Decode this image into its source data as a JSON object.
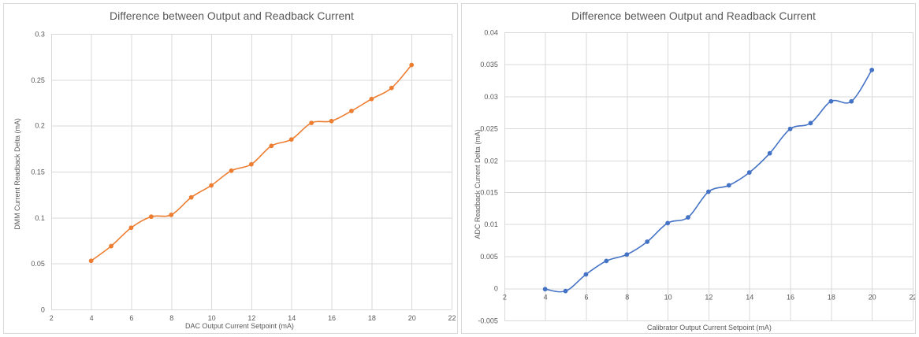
{
  "chart_data": [
    {
      "type": "line",
      "title": "Difference between Output and Readback Current",
      "xlabel": "DAC Output Current Setpoint (mA)",
      "ylabel": "DMM Current Readback Delta (mA)",
      "xlim": [
        2,
        22
      ],
      "ylim": [
        0,
        0.3
      ],
      "x_ticks": [
        "2",
        "4",
        "6",
        "8",
        "10",
        "12",
        "14",
        "16",
        "18",
        "20",
        "22"
      ],
      "y_ticks": [
        "0",
        "0.05",
        "0.1",
        "0.15",
        "0.2",
        "0.25",
        "0.3"
      ],
      "grid": true,
      "legend": "none",
      "smoothed": true,
      "color": "#ED7D31",
      "series": [
        {
          "x": [
            4,
            5,
            6,
            7,
            8,
            9,
            10,
            11,
            12,
            13,
            14,
            15,
            16,
            17,
            18,
            19,
            20
          ],
          "y": [
            0.053,
            0.069,
            0.089,
            0.101,
            0.103,
            0.122,
            0.135,
            0.151,
            0.158,
            0.178,
            0.185,
            0.203,
            0.205,
            0.216,
            0.229,
            0.241,
            0.266
          ]
        }
      ]
    },
    {
      "type": "line",
      "title": "Difference between Output and Readback Current",
      "xlabel": "Calibrator Output Current Setpoint (mA)",
      "ylabel": "ADC Readback Current Delta (mA)",
      "xlim": [
        2,
        22
      ],
      "ylim": [
        -0.005,
        0.04
      ],
      "x_ticks": [
        "2",
        "4",
        "6",
        "8",
        "10",
        "12",
        "14",
        "16",
        "18",
        "20",
        "22"
      ],
      "y_ticks": [
        "-0.005",
        "0",
        "0.005",
        "0.01",
        "0.015",
        "0.02",
        "0.025",
        "0.03",
        "0.035",
        "0.04"
      ],
      "grid": true,
      "legend": "none",
      "smoothed": true,
      "color": "#4472C4",
      "series": [
        {
          "x": [
            4,
            5,
            6,
            7,
            8,
            9,
            10,
            11,
            12,
            13,
            14,
            15,
            16,
            17,
            18,
            19,
            20
          ],
          "y": [
            -0.0001,
            -0.0004,
            0.0022,
            0.0043,
            0.0053,
            0.0073,
            0.0102,
            0.0111,
            0.0151,
            0.0161,
            0.0181,
            0.0211,
            0.0249,
            0.0258,
            0.0292,
            0.0292,
            0.0341
          ]
        }
      ]
    }
  ]
}
